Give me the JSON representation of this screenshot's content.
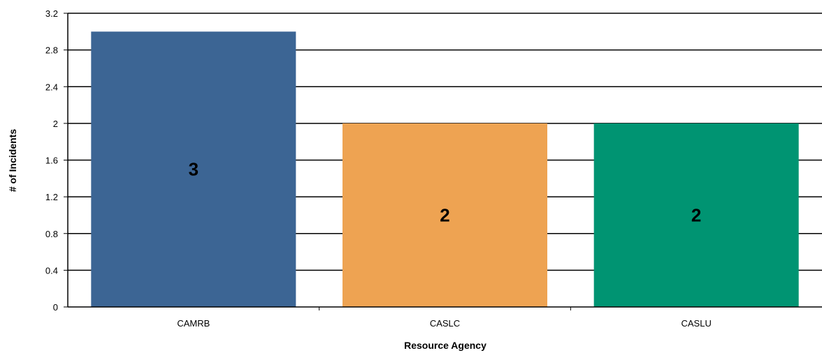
{
  "chart_data": {
    "type": "bar",
    "categories": [
      "CAMRB",
      "CASLC",
      "CASLU"
    ],
    "values": [
      3,
      2,
      2
    ],
    "data_labels": [
      "3",
      "2",
      "2"
    ],
    "colors": [
      "#3c6594",
      "#eea352",
      "#009472"
    ],
    "title": "",
    "xlabel": "Resource Agency",
    "ylabel": "# of Incidents",
    "ylim": [
      0,
      3.2
    ],
    "y_ticks": [
      "0",
      "0.4",
      "0.8",
      "1.2",
      "1.6",
      "2",
      "2.4",
      "2.8",
      "3.2"
    ],
    "y_tick_values": [
      0,
      0.4,
      0.8,
      1.2,
      1.6,
      2,
      2.4,
      2.8,
      3.2
    ],
    "grid": true,
    "legend": "none"
  }
}
